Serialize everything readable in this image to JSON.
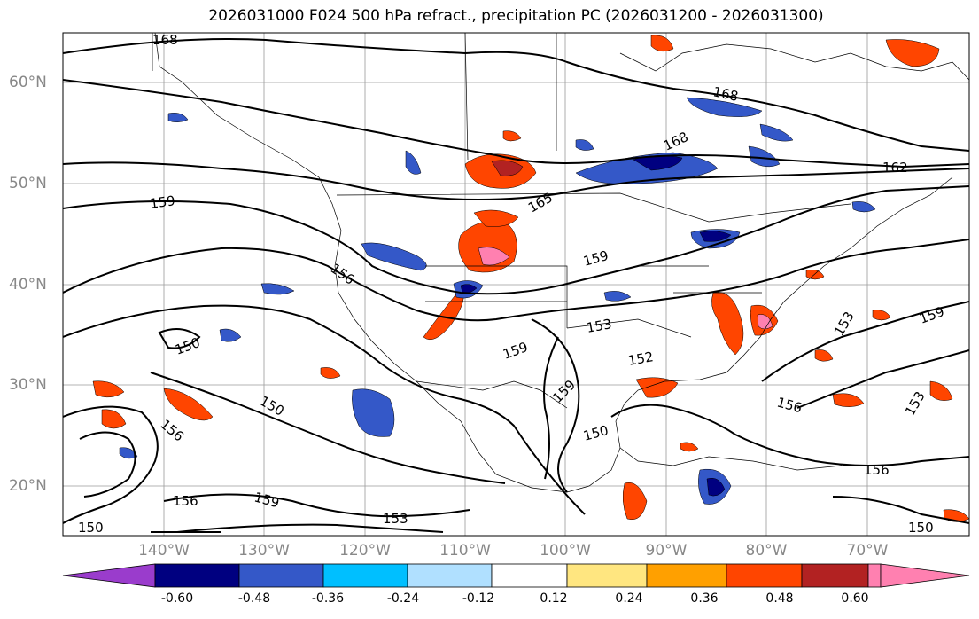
{
  "title": "2026031000 F024 500 hPa refract., precipitation PC (2026031200 - 2026031300)",
  "lat_labels": [
    "60°N",
    "50°N",
    "40°N",
    "30°N",
    "20°N"
  ],
  "lon_labels": [
    "140°W",
    "130°W",
    "120°W",
    "110°W",
    "100°W",
    "90°W",
    "80°W",
    "70°W"
  ],
  "contour_labels": [
    "168",
    "168",
    "168",
    "162",
    "165",
    "159",
    "159",
    "156",
    "150",
    "159",
    "153",
    "152",
    "159",
    "156",
    "159",
    "153",
    "150",
    "156",
    "150",
    "153",
    "156",
    "150",
    "156",
    "150",
    "159",
    "153"
  ],
  "colorbar": {
    "ticks": [
      "-0.60",
      "-0.48",
      "-0.36",
      "-0.24",
      "-0.12",
      "0.12",
      "0.24",
      "0.36",
      "0.48",
      "0.60"
    ],
    "colors": {
      "under": "#9a3ccc",
      "c1": "#000080",
      "c2": "#3458c8",
      "c3": "#00bfff",
      "c4": "#b0e0ff",
      "c5": "#ffffff",
      "c6": "#ffe680",
      "c7": "#ffa000",
      "c8": "#ff4500",
      "c9": "#b22222",
      "over": "#ff80b0"
    }
  }
}
